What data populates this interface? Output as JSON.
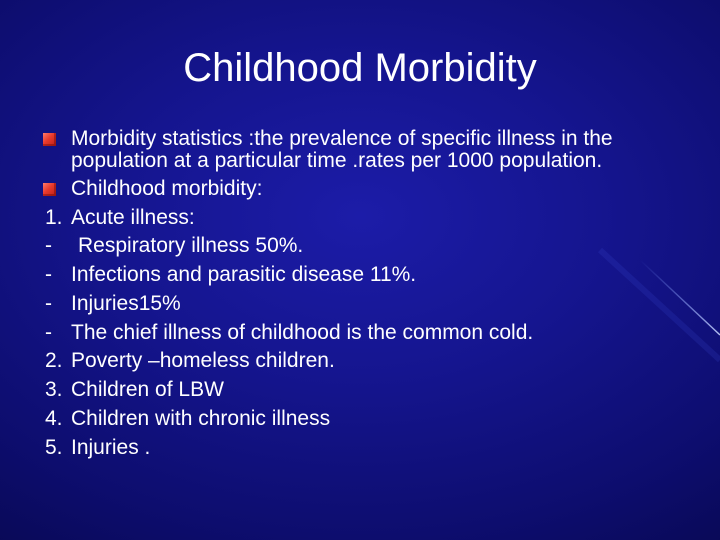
{
  "slide": {
    "title": "Childhood Morbidity",
    "bullets": [
      {
        "icon": "red-square-bullet-icon",
        "text": "Morbidity statistics :the prevalence of specific illness in the population at a particular time .rates per 1000 population."
      },
      {
        "icon": "red-square-bullet-icon",
        "text": "Childhood morbidity:"
      }
    ],
    "rows": [
      {
        "marker": "1.",
        "text": "Acute illness:"
      },
      {
        "marker": "-",
        "text": "Respiratory illness 50%."
      },
      {
        "marker": "-",
        "text": "Infections and parasitic disease 11%."
      },
      {
        "marker": "-",
        "text": "Injuries15%"
      },
      {
        "marker": "-",
        "text": "The chief illness of childhood is the common cold."
      },
      {
        "marker": "2.",
        "text": "Poverty –homeless children."
      },
      {
        "marker": "3.",
        "text": "Children of LBW"
      },
      {
        "marker": "4.",
        "text": "Children with chronic illness"
      },
      {
        "marker": "5.",
        "text": "Injuries ."
      }
    ]
  },
  "colors": {
    "background": "#15158f",
    "text": "#ffffff",
    "bullet": "#e8392c"
  }
}
